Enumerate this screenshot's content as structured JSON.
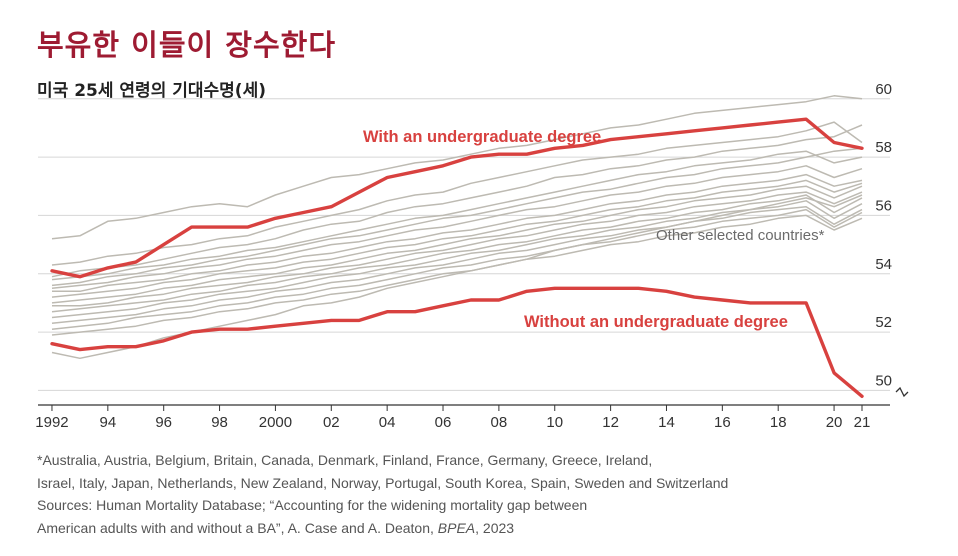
{
  "title": "부유한 이들이 장수한다",
  "subtitle": "미국 25세 연령의 기대수명(세)",
  "chart_data": {
    "type": "line",
    "ylim": [
      49.5,
      60.3
    ],
    "xlim": [
      1991.5,
      2021
    ],
    "yticks": [
      50,
      52,
      54,
      56,
      58,
      60
    ],
    "xtick_values": [
      1992,
      1994,
      1996,
      1998,
      2000,
      2002,
      2004,
      2006,
      2008,
      2010,
      2012,
      2014,
      2016,
      2018,
      2020,
      2021
    ],
    "xtick_labels": [
      "1992",
      "94",
      "96",
      "98",
      "2000",
      "02",
      "04",
      "06",
      "08",
      "10",
      "12",
      "14",
      "16",
      "18",
      "20",
      "21"
    ],
    "grid": true,
    "series": [
      {
        "name": "With an undergraduate degree",
        "color": "#d8413f",
        "x": [
          1992,
          1993,
          1994,
          1995,
          1996,
          1997,
          1998,
          1999,
          2000,
          2001,
          2002,
          2003,
          2004,
          2005,
          2006,
          2007,
          2008,
          2009,
          2010,
          2011,
          2012,
          2013,
          2014,
          2015,
          2016,
          2017,
          2018,
          2019,
          2020,
          2021
        ],
        "values": [
          54.1,
          53.9,
          54.2,
          54.4,
          55.0,
          55.6,
          55.6,
          55.6,
          55.9,
          56.1,
          56.3,
          56.8,
          57.3,
          57.5,
          57.7,
          58.0,
          58.1,
          58.1,
          58.3,
          58.4,
          58.6,
          58.7,
          58.8,
          58.9,
          59.0,
          59.1,
          59.2,
          59.3,
          58.5,
          58.3
        ]
      },
      {
        "name": "Without an undergraduate degree",
        "color": "#d8413f",
        "x": [
          1992,
          1993,
          1994,
          1995,
          1996,
          1997,
          1998,
          1999,
          2000,
          2001,
          2002,
          2003,
          2004,
          2005,
          2006,
          2007,
          2008,
          2009,
          2010,
          2011,
          2012,
          2013,
          2014,
          2015,
          2016,
          2017,
          2018,
          2019,
          2020,
          2021
        ],
        "values": [
          51.6,
          51.4,
          51.5,
          51.5,
          51.7,
          52.0,
          52.1,
          52.1,
          52.2,
          52.3,
          52.4,
          52.4,
          52.7,
          52.7,
          52.9,
          53.1,
          53.1,
          53.4,
          53.5,
          53.5,
          53.5,
          53.5,
          53.4,
          53.2,
          53.1,
          53.0,
          53.0,
          53.0,
          50.6,
          49.8
        ]
      }
    ],
    "annotations": {
      "with_label": "With an undergraduate degree",
      "without_label": "Without an undergraduate degree",
      "others_label": "Other selected countries*"
    },
    "other_countries": {
      "color": "#bdbab2",
      "x": [
        1992,
        1993,
        1994,
        1995,
        1996,
        1997,
        1998,
        1999,
        2000,
        2001,
        2002,
        2003,
        2004,
        2005,
        2006,
        2007,
        2008,
        2009,
        2010,
        2011,
        2012,
        2013,
        2014,
        2015,
        2016,
        2017,
        2018,
        2019,
        2020,
        2021
      ],
      "series": [
        [
          55.2,
          55.3,
          55.8,
          55.9,
          56.1,
          56.3,
          56.4,
          56.3,
          56.7,
          57.0,
          57.3,
          57.4,
          57.6,
          57.8,
          57.9,
          58.1,
          58.3,
          58.4,
          58.6,
          58.8,
          59.0,
          59.1,
          59.3,
          59.5,
          59.6,
          59.7,
          59.8,
          59.9,
          60.1,
          60.0
        ],
        [
          54.3,
          54.4,
          54.6,
          54.7,
          54.9,
          55.0,
          55.2,
          55.3,
          55.6,
          55.8,
          56.0,
          56.2,
          56.5,
          56.7,
          56.8,
          57.1,
          57.3,
          57.5,
          57.7,
          57.9,
          58.0,
          58.1,
          58.3,
          58.4,
          58.5,
          58.6,
          58.7,
          58.9,
          59.2,
          58.5
        ],
        [
          53.9,
          54.1,
          54.2,
          54.3,
          54.5,
          54.7,
          54.9,
          55.0,
          55.2,
          55.5,
          55.7,
          55.8,
          56.1,
          56.3,
          56.4,
          56.6,
          56.8,
          57.0,
          57.3,
          57.4,
          57.6,
          57.7,
          57.9,
          58.0,
          58.2,
          58.3,
          58.4,
          58.6,
          58.7,
          59.1
        ],
        [
          53.8,
          53.9,
          54.0,
          54.2,
          54.3,
          54.5,
          54.6,
          54.8,
          54.9,
          55.1,
          55.3,
          55.5,
          55.7,
          55.9,
          56.0,
          56.2,
          56.4,
          56.6,
          56.8,
          57.0,
          57.2,
          57.4,
          57.5,
          57.7,
          57.8,
          57.9,
          58.1,
          58.2,
          57.8,
          58.0
        ],
        [
          53.6,
          53.7,
          53.9,
          54.0,
          54.2,
          54.3,
          54.5,
          54.6,
          54.8,
          55.0,
          55.2,
          55.3,
          55.5,
          55.7,
          55.9,
          56.0,
          56.2,
          56.4,
          56.6,
          56.8,
          56.9,
          57.1,
          57.3,
          57.4,
          57.6,
          57.7,
          57.8,
          58.0,
          58.2,
          58.3
        ],
        [
          53.5,
          53.6,
          53.7,
          53.9,
          54.0,
          54.2,
          54.3,
          54.5,
          54.6,
          54.8,
          55.0,
          55.1,
          55.3,
          55.5,
          55.6,
          55.8,
          56.0,
          56.2,
          56.3,
          56.5,
          56.7,
          56.8,
          57.0,
          57.1,
          57.3,
          57.4,
          57.5,
          57.7,
          57.3,
          57.6
        ],
        [
          53.4,
          53.4,
          53.6,
          53.7,
          53.8,
          54.0,
          54.1,
          54.3,
          54.4,
          54.6,
          54.7,
          54.9,
          55.1,
          55.2,
          55.4,
          55.5,
          55.7,
          55.9,
          56.0,
          56.2,
          56.4,
          56.5,
          56.7,
          56.8,
          57.0,
          57.1,
          57.2,
          57.4,
          57.0,
          57.2
        ],
        [
          53.2,
          53.3,
          53.4,
          53.5,
          53.7,
          53.8,
          54.0,
          54.1,
          54.2,
          54.4,
          54.5,
          54.7,
          54.9,
          55.0,
          55.2,
          55.3,
          55.5,
          55.7,
          55.8,
          56.0,
          56.2,
          56.3,
          56.5,
          56.6,
          56.8,
          56.9,
          57.0,
          57.2,
          56.8,
          57.1
        ],
        [
          53.0,
          53.1,
          53.2,
          53.3,
          53.5,
          53.6,
          53.8,
          53.9,
          54.0,
          54.2,
          54.3,
          54.5,
          54.7,
          54.8,
          55.0,
          55.2,
          55.3,
          55.5,
          55.7,
          55.8,
          56.0,
          56.2,
          56.3,
          56.5,
          56.6,
          56.7,
          56.9,
          57.0,
          56.6,
          57.0
        ],
        [
          52.9,
          52.9,
          53.0,
          53.2,
          53.3,
          53.5,
          53.6,
          53.7,
          53.9,
          54.0,
          54.2,
          54.3,
          54.5,
          54.7,
          54.8,
          55.0,
          55.2,
          55.3,
          55.5,
          55.7,
          55.8,
          56.0,
          56.1,
          56.3,
          56.4,
          56.5,
          56.7,
          56.8,
          56.4,
          56.8
        ],
        [
          52.7,
          52.8,
          52.9,
          53.0,
          53.1,
          53.3,
          53.4,
          53.6,
          53.7,
          53.9,
          54.0,
          54.2,
          54.3,
          54.5,
          54.7,
          54.8,
          55.0,
          55.1,
          55.3,
          55.5,
          55.6,
          55.8,
          55.9,
          56.1,
          56.2,
          56.4,
          56.5,
          56.7,
          56.1,
          56.6
        ],
        [
          52.5,
          52.6,
          52.7,
          52.8,
          53.0,
          53.1,
          53.3,
          53.4,
          53.5,
          53.7,
          53.9,
          54.0,
          54.2,
          54.3,
          54.5,
          54.7,
          54.8,
          55.0,
          55.2,
          55.3,
          55.5,
          55.6,
          55.8,
          55.9,
          56.1,
          56.2,
          56.3,
          56.5,
          55.9,
          56.4
        ],
        [
          52.3,
          52.4,
          52.5,
          52.6,
          52.8,
          52.9,
          53.1,
          53.2,
          53.4,
          53.5,
          53.7,
          53.8,
          54.0,
          54.2,
          54.3,
          54.5,
          54.7,
          54.8,
          55.0,
          55.2,
          55.3,
          55.5,
          55.6,
          55.8,
          55.9,
          56.1,
          56.2,
          56.3,
          55.7,
          56.2
        ],
        [
          52.1,
          52.2,
          52.3,
          52.5,
          52.6,
          52.7,
          52.9,
          53.0,
          53.2,
          53.3,
          53.5,
          53.6,
          53.8,
          54.0,
          54.2,
          54.3,
          54.5,
          54.6,
          54.8,
          55.0,
          55.1,
          55.3,
          55.5,
          55.6,
          55.8,
          55.9,
          56.0,
          56.2,
          55.6,
          56.1
        ],
        [
          51.9,
          52.0,
          52.1,
          52.2,
          52.4,
          52.5,
          52.7,
          52.8,
          53.0,
          53.1,
          53.3,
          53.4,
          53.6,
          53.8,
          54.0,
          54.1,
          54.3,
          54.5,
          54.6,
          54.8,
          55.0,
          55.1,
          55.3,
          55.4,
          55.6,
          55.7,
          55.9,
          56.0,
          55.5,
          55.9
        ],
        [
          51.3,
          51.1,
          51.3,
          51.5,
          51.8,
          52.0,
          52.2,
          52.4,
          52.6,
          52.9,
          53.0,
          53.2,
          53.5,
          53.7,
          53.9,
          54.1,
          54.3,
          54.5,
          54.8,
          55.0,
          55.2,
          55.4,
          55.6,
          55.8,
          56.0,
          56.2,
          56.4,
          56.6,
          56.3,
          56.7
        ]
      ]
    }
  },
  "notes": {
    "line1": "*Australia, Austria, Belgium, Britain, Canada, Denmark, Finland, France, Germany, Greece, Ireland,",
    "line2": "Israel, Italy, Japan, Netherlands, New Zealand, Norway, Portugal, South Korea, Spain, Sweden and Switzerland",
    "line3": "Sources: Human Mortality Database; “Accounting for the widening mortality gap between",
    "line4_a": "American adults with and without a BA”, A. Case and A. Deaton, ",
    "line4_b": "BPEA",
    "line4_c": ", 2023"
  }
}
